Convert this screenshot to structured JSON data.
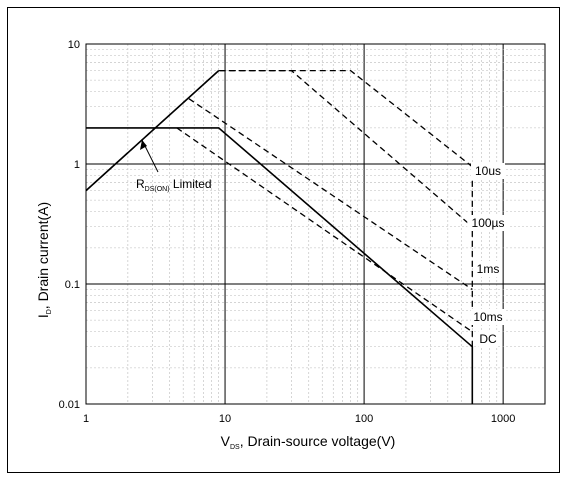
{
  "chart_data": {
    "type": "line",
    "xscale": "log",
    "yscale": "log",
    "xlim": [
      1,
      2000
    ],
    "ylim": [
      0.01,
      10
    ],
    "x_ticks": [
      "1",
      "10",
      "100",
      "1000"
    ],
    "y_ticks": [
      "10",
      "1",
      "0.1",
      "0.01"
    ],
    "xlabel_main": "V",
    "xlabel_sub": "DS",
    "xlabel_rest": ", Drain-source voltage(V)",
    "ylabel_main": "I",
    "ylabel_sub": "D",
    "ylabel_rest": ", Drain current(A)",
    "grid": true,
    "annotation": {
      "main": "R",
      "sub": "DS(ON)",
      "rest": " Limited"
    },
    "series": [
      {
        "name": "10us",
        "style": "dashed",
        "points": [
          [
            1,
            0.6
          ],
          [
            9,
            6
          ],
          [
            80,
            6
          ],
          [
            600,
            0.95
          ],
          [
            600,
            0.01
          ]
        ]
      },
      {
        "name": "100µs",
        "style": "dashed",
        "points": [
          [
            9,
            6
          ],
          [
            30,
            6
          ],
          [
            600,
            0.3
          ]
        ]
      },
      {
        "name": "1ms",
        "style": "dashed",
        "points": [
          [
            5.5,
            3.5
          ],
          [
            600,
            0.09
          ]
        ]
      },
      {
        "name": "10ms",
        "style": "dashed",
        "points": [
          [
            4.5,
            2
          ],
          [
            600,
            0.04
          ]
        ]
      },
      {
        "name": "DC",
        "style": "solid",
        "points": [
          [
            1,
            2
          ],
          [
            9,
            2
          ],
          [
            600,
            0.03
          ],
          [
            600,
            0.01
          ]
        ]
      },
      {
        "name": "",
        "style": "solid",
        "points": [
          [
            1,
            0.6
          ],
          [
            9,
            6
          ]
        ]
      }
    ],
    "series_labels": [
      "10us",
      "100µs",
      "1ms",
      "10ms",
      "DC"
    ]
  },
  "colors": {
    "line": "#000000",
    "grid_major": "#000000",
    "grid_minor": "#bbbbbb",
    "background": "#ffffff"
  }
}
